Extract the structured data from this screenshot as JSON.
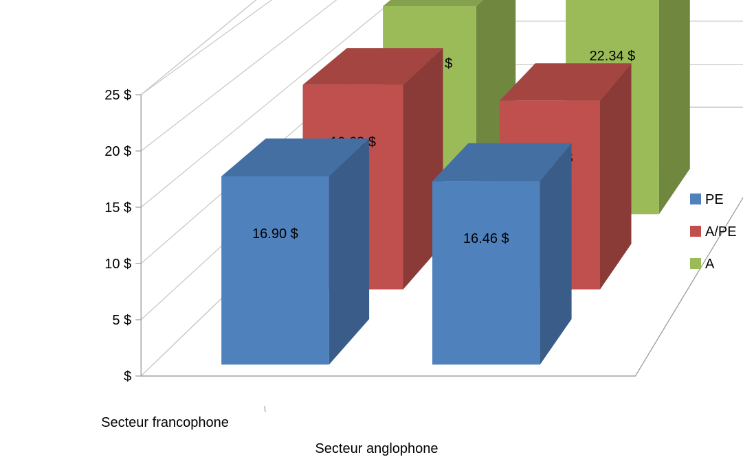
{
  "chart_data": {
    "type": "bar",
    "style": "3d-column",
    "categories": [
      "Secteur francophone",
      "Secteur anglophone"
    ],
    "series": [
      {
        "name": "PE",
        "values": [
          16.9,
          16.46
        ],
        "color": "#4f81bd"
      },
      {
        "name": "A/PE",
        "values": [
          19.68,
          18.15
        ],
        "color": "#c0504d"
      },
      {
        "name": "A",
        "values": [
          21.55,
          22.34
        ],
        "color": "#9bbb59"
      }
    ],
    "data_labels": {
      "PE": [
        "16.90 $",
        "16.46 $"
      ],
      "A/PE": [
        "19.68 $",
        "18.15 $"
      ],
      "A": [
        "21.55 $",
        "22.34 $"
      ]
    },
    "y_ticks": [
      0,
      5,
      10,
      15,
      20,
      25
    ],
    "y_tick_labels": [
      "$",
      "5 $",
      "10 $",
      "15 $",
      "20 $",
      "25 $"
    ],
    "ylim": [
      0,
      25
    ],
    "grid": true,
    "legend": {
      "position": "right",
      "entries": [
        "PE",
        "A/PE",
        "A"
      ]
    },
    "title": "",
    "xlabel": "",
    "ylabel": ""
  }
}
